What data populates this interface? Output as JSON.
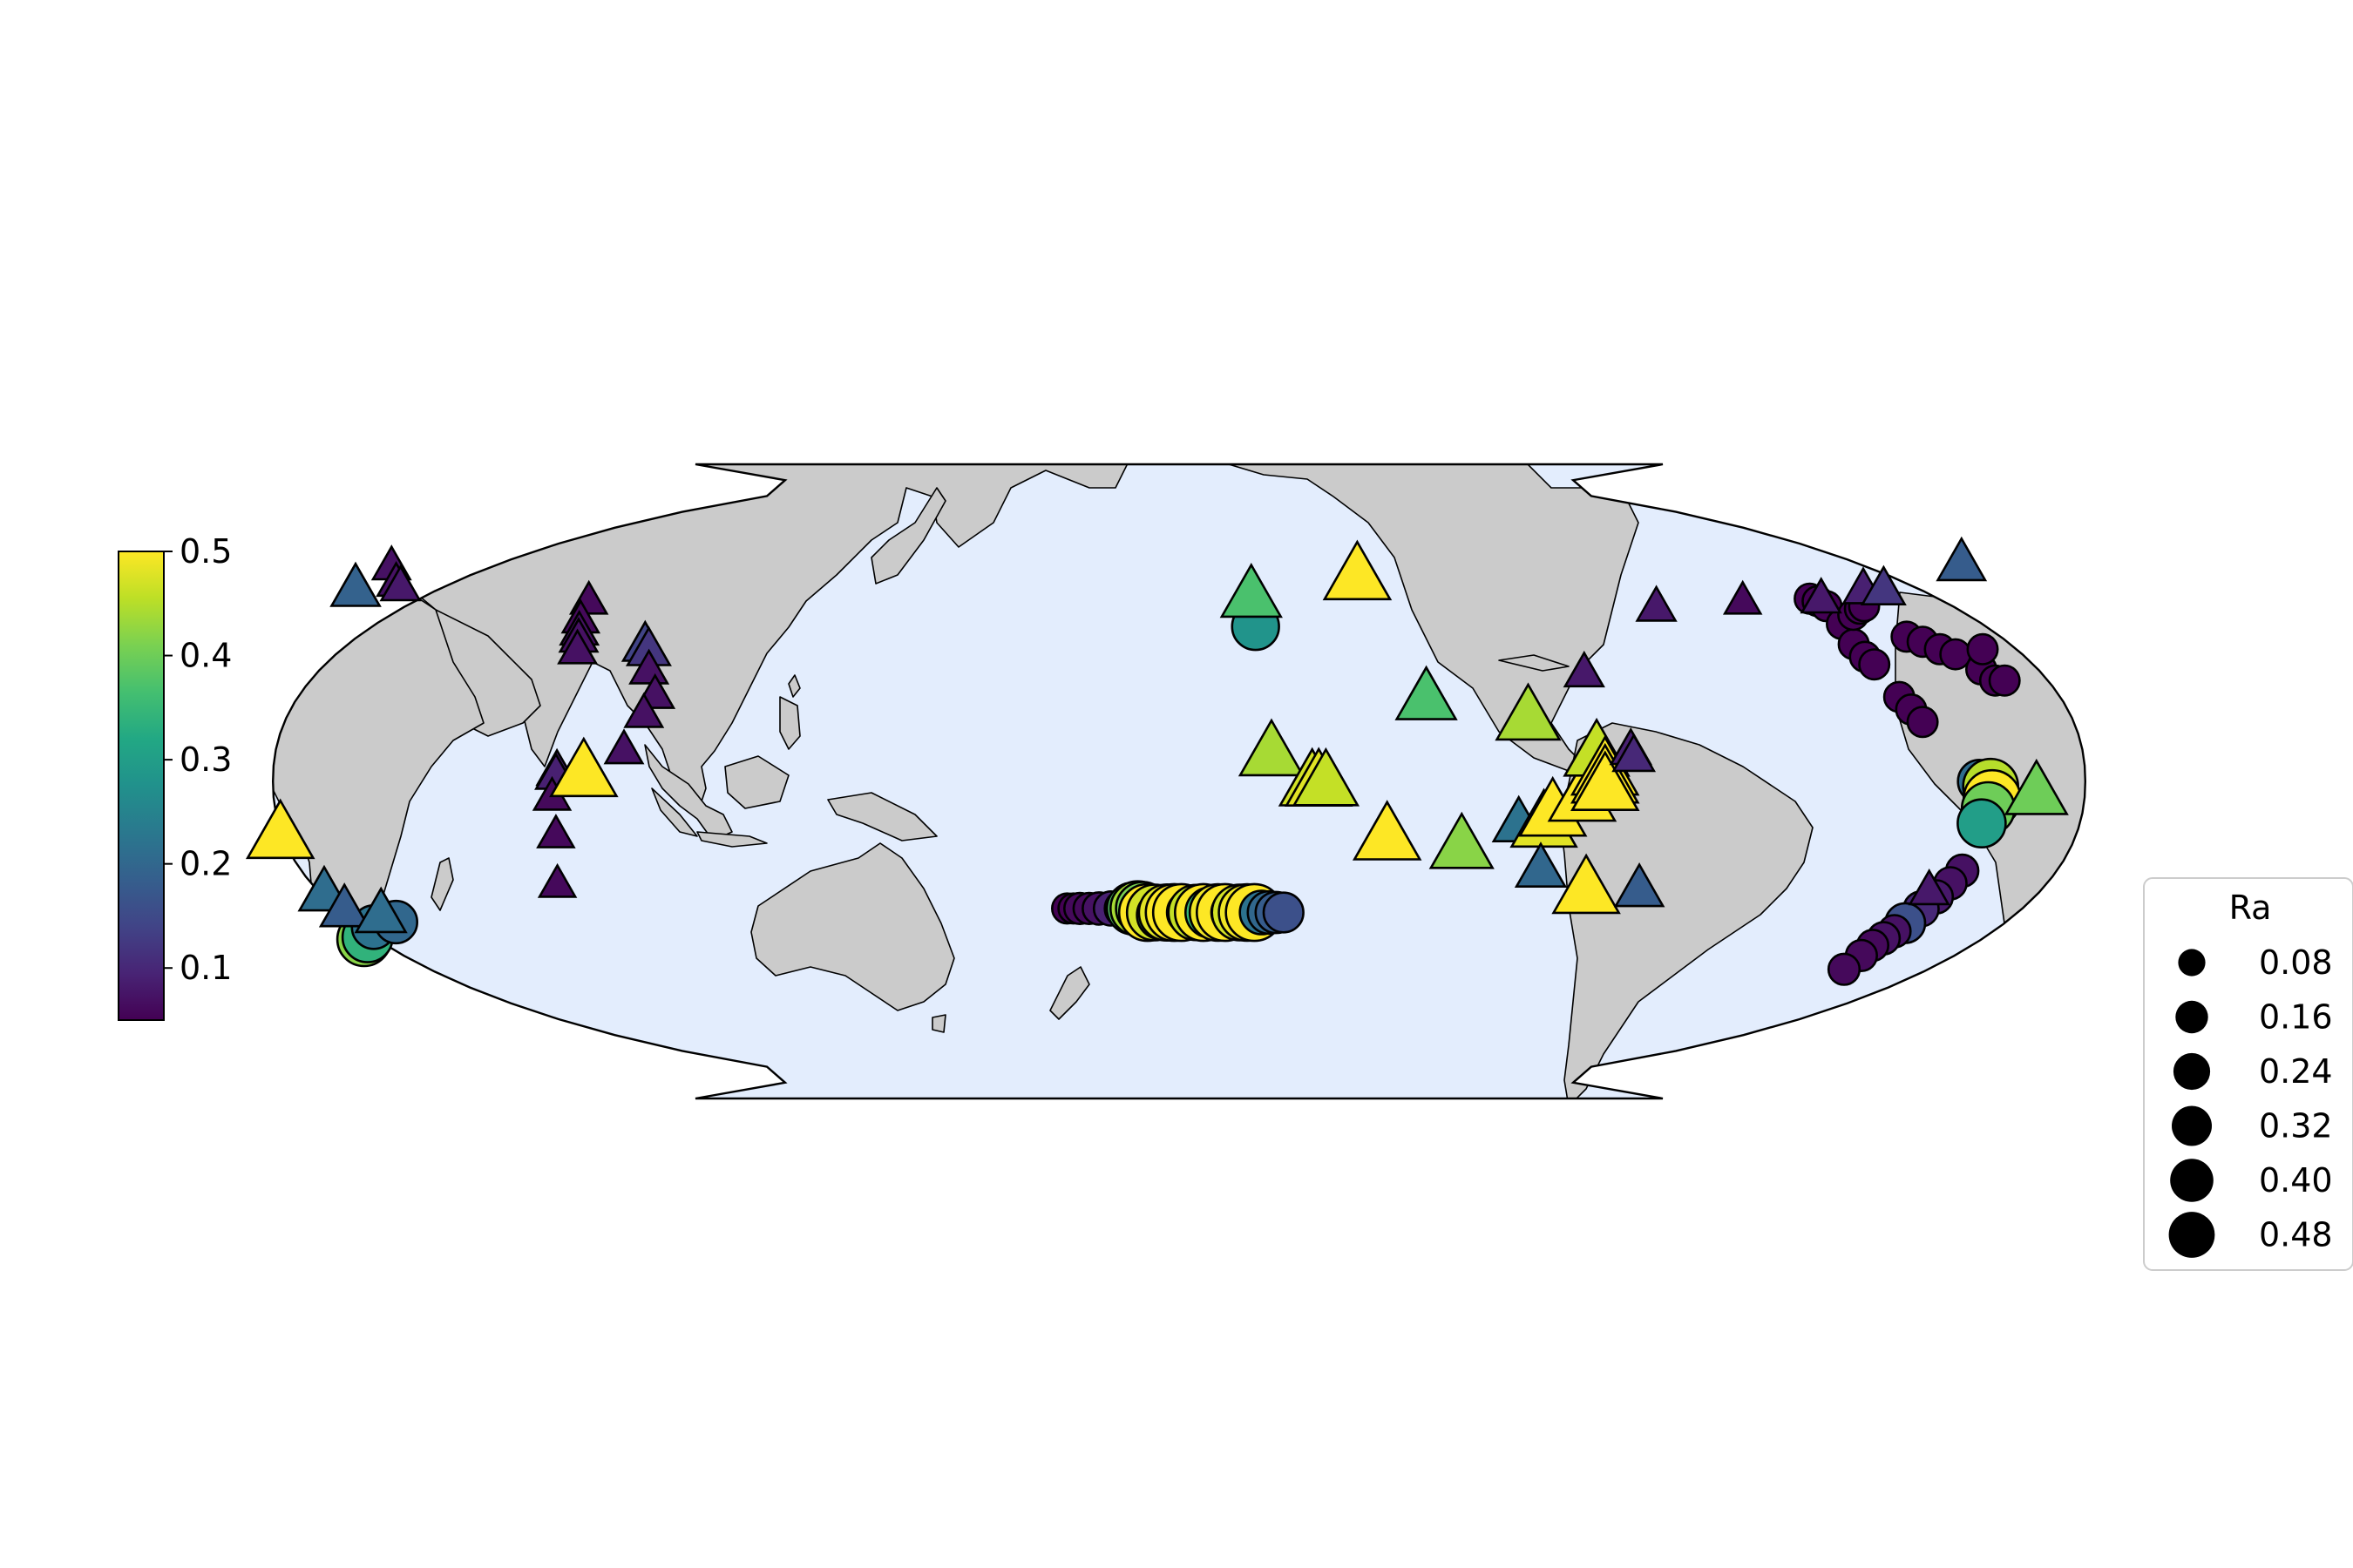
{
  "chart_data": {
    "type": "scatter",
    "title": "",
    "colorbar": {
      "range": [
        0.05,
        0.5
      ],
      "ticks": [
        0.1,
        0.2,
        0.3,
        0.4,
        0.5
      ],
      "tick_labels": [
        "0.1",
        "0.2",
        "0.3",
        "0.4",
        "0.5"
      ],
      "colormap": "viridis"
    },
    "size_legend": {
      "title": "Ra",
      "values": [
        0.08,
        0.16,
        0.24,
        0.32,
        0.4,
        0.48
      ],
      "labels": [
        "0.08",
        "0.16",
        "0.24",
        "0.32",
        "0.40",
        "0.48"
      ]
    },
    "series": [
      {
        "marker": "circle",
        "points": [
          {
            "lon": 166,
            "lat": 31,
            "ra": 0.28
          },
          {
            "lon": 127,
            "lat": -25.5,
            "ra": 0.05
          },
          {
            "lon": 128.3,
            "lat": -25.5,
            "ra": 0.05
          },
          {
            "lon": 129.6,
            "lat": -25.5,
            "ra": 0.06
          },
          {
            "lon": 131.5,
            "lat": -25.5,
            "ra": 0.06
          },
          {
            "lon": 133.5,
            "lat": -25.5,
            "ra": 0.07
          },
          {
            "lon": 136,
            "lat": -25.5,
            "ra": 0.09
          },
          {
            "lon": 138.5,
            "lat": -25.5,
            "ra": 0.12
          },
          {
            "lon": 140.5,
            "lat": -25.5,
            "ra": 0.38
          },
          {
            "lon": 141.5,
            "lat": -25.5,
            "ra": 0.44
          },
          {
            "lon": 142.5,
            "lat": -25.5,
            "ra": 0.41
          },
          {
            "lon": 143.5,
            "lat": -26.3,
            "ra": 0.5
          },
          {
            "lon": 145,
            "lat": -26.3,
            "ra": 0.47
          },
          {
            "lon": 146.3,
            "lat": -26.8,
            "ra": 0.31
          },
          {
            "lon": 147.5,
            "lat": -26.3,
            "ra": 0.48
          },
          {
            "lon": 149,
            "lat": -26.3,
            "ra": 0.5
          },
          {
            "lon": 150.5,
            "lat": -26.3,
            "ra": 0.5
          },
          {
            "lon": 152,
            "lat": -26.3,
            "ra": 0.22
          },
          {
            "lon": 153.5,
            "lat": -26.3,
            "ra": 0.46
          },
          {
            "lon": 155,
            "lat": -26.3,
            "ra": 0.5
          },
          {
            "lon": 156.5,
            "lat": -26.3,
            "ra": 0.35
          },
          {
            "lon": 158,
            "lat": -26.3,
            "ra": 0.49
          },
          {
            "lon": 159.5,
            "lat": -26.3,
            "ra": 0.5
          },
          {
            "lon": 161,
            "lat": -26.3,
            "ra": 0.2
          },
          {
            "lon": 162.5,
            "lat": -26.3,
            "ra": 0.47
          },
          {
            "lon": 164,
            "lat": -26.3,
            "ra": 0.49
          },
          {
            "lon": 165.5,
            "lat": -26.3,
            "ra": 0.5
          },
          {
            "lon": 167,
            "lat": -26.3,
            "ra": 0.22
          },
          {
            "lon": 168.5,
            "lat": -26.3,
            "ra": 0.2
          },
          {
            "lon": 170,
            "lat": -26.3,
            "ra": 0.18
          },
          {
            "lon": 171.5,
            "lat": -26.3,
            "ra": 0.16
          },
          {
            "lon": -75,
            "lat": 36.5,
            "ra": 0.05
          },
          {
            "lon": -73.6,
            "lat": 36.0,
            "ra": 0.05
          },
          {
            "lon": -72.3,
            "lat": 35.0,
            "ra": 0.05
          },
          {
            "lon": -71,
            "lat": 31.5,
            "ra": 0.05
          },
          {
            "lon": -70.5,
            "lat": 27.5,
            "ra": 0.05
          },
          {
            "lon": -69.3,
            "lat": 25.0,
            "ra": 0.05
          },
          {
            "lon": -68,
            "lat": 23.5,
            "ra": 0.05
          },
          {
            "lon": -67.6,
            "lat": 33.3,
            "ra": 0.05
          },
          {
            "lon": -65.5,
            "lat": 34.5,
            "ra": 0.05
          },
          {
            "lon": -64.3,
            "lat": 35.0,
            "ra": 0.05
          },
          {
            "lon": -58.8,
            "lat": 29.0,
            "ra": 0.05
          },
          {
            "lon": -56.0,
            "lat": 28.0,
            "ra": 0.05
          },
          {
            "lon": -53.2,
            "lat": 26.5,
            "ra": 0.05
          },
          {
            "lon": -50.5,
            "lat": 25.5,
            "ra": 0.05
          },
          {
            "lon": -46.6,
            "lat": 22.5,
            "ra": 0.05
          },
          {
            "lon": -44.4,
            "lat": 26.5,
            "ra": 0.05
          },
          {
            "lon": -44.7,
            "lat": 20.3,
            "ra": 0.05
          },
          {
            "lon": -42.8,
            "lat": 20.3,
            "ra": 0.05
          },
          {
            "lon": -65.2,
            "lat": 17.0,
            "ra": 0.05
          },
          {
            "lon": -63.5,
            "lat": 14.5,
            "ra": 0.05
          },
          {
            "lon": -61.8,
            "lat": 12.0,
            "ra": 0.05
          },
          {
            "lon": -51.8,
            "lat": 0.0,
            "ra": 0.21
          },
          {
            "lon": -49.6,
            "lat": -1.0,
            "ra": 0.45
          },
          {
            "lon": -49.2,
            "lat": -3.5,
            "ra": 0.5
          },
          {
            "lon": -49.8,
            "lat": -5.5,
            "ra": 0.4
          },
          {
            "lon": -50.7,
            "lat": -8.5,
            "ra": 0.3
          },
          {
            "lon": -52.2,
            "lat": -18.0,
            "ra": 0.07
          },
          {
            "lon": -53.7,
            "lat": -20.5,
            "ra": 0.07
          },
          {
            "lon": -55.5,
            "lat": -23.2,
            "ra": 0.08
          },
          {
            "lon": -57.5,
            "lat": -25.6,
            "ra": 0.1
          },
          {
            "lon": -59.4,
            "lat": -28.4,
            "ra": 0.16
          },
          {
            "lon": -60.8,
            "lat": -30.0,
            "ra": 0.07
          },
          {
            "lon": -62.3,
            "lat": -31.4,
            "ra": 0.07
          },
          {
            "lon": -63.8,
            "lat": -32.8,
            "ra": 0.06
          },
          {
            "lon": -65.0,
            "lat": -34.8,
            "ra": 0.06
          },
          {
            "lon": -67.0,
            "lat": -37.5,
            "ra": 0.06
          },
          {
            "lon": -21.0,
            "lat": -31.6,
            "ra": 0.42
          },
          {
            "lon": -20.0,
            "lat": -31.2,
            "ra": 0.34
          },
          {
            "lon": -17.5,
            "lat": -29.2,
            "ra": 0.22
          },
          {
            "lon": -12.3,
            "lat": -28.2,
            "ra": 0.2
          }
        ]
      },
      {
        "marker": "triangle",
        "points": [
          {
            "lon": 23.8,
            "lat": 36.2,
            "ra": 0.06
          },
          {
            "lon": 24.0,
            "lat": 32.5,
            "ra": 0.06
          },
          {
            "lon": 24.8,
            "lat": 30.2,
            "ra": 0.07
          },
          {
            "lon": 25.3,
            "lat": 28.8,
            "ra": 0.07
          },
          {
            "lon": 26.0,
            "lat": 26.5,
            "ra": 0.07
          },
          {
            "lon": 39.6,
            "lat": 27.5,
            "ra": 0.14
          },
          {
            "lon": 40.7,
            "lat": 26.5,
            "ra": 0.12
          },
          {
            "lon": 42.0,
            "lat": 22.5,
            "ra": 0.07
          },
          {
            "lon": 44.5,
            "lat": 17.6,
            "ra": 0.07
          },
          {
            "lon": 43.0,
            "lat": 13.8,
            "ra": 0.07
          },
          {
            "lon": 40.0,
            "lat": 6.5,
            "ra": 0.07
          },
          {
            "lon": 27.0,
            "lat": 2.3,
            "ra": 0.09
          },
          {
            "lon": 26.8,
            "lat": 1.5,
            "ra": 0.09
          },
          {
            "lon": 26.0,
            "lat": -3.0,
            "ra": 0.06
          },
          {
            "lon": 26.0,
            "lat": -10.6,
            "ra": 0.06
          },
          {
            "lon": 24.0,
            "lat": -20.5,
            "ra": 0.06
          },
          {
            "lon": 32.3,
            "lat": 2.0,
            "ra": 0.5
          },
          {
            "lon": 165.5,
            "lat": 37.3,
            "ra": 0.37
          },
          {
            "lon": -171.0,
            "lat": 41.2,
            "ra": 0.5
          },
          {
            "lon": -160.3,
            "lat": 17.0,
            "ra": 0.37
          },
          {
            "lon": 168.3,
            "lat": 6.0,
            "ra": 0.44
          },
          {
            "lon": 176.3,
            "lat": 0.0,
            "ra": 0.47
          },
          {
            "lon": 177.6,
            "lat": 0.0,
            "ra": 0.48
          },
          {
            "lon": 179.0,
            "lat": 0.0,
            "ra": 0.46
          },
          {
            "lon": -168.6,
            "lat": -10.8,
            "ra": 0.5
          },
          {
            "lon": -153.6,
            "lat": -12.8,
            "ra": 0.42
          },
          {
            "lon": -142.6,
            "lat": -8.3,
            "ra": 0.22
          },
          {
            "lon": -137.6,
            "lat": -8.3,
            "ra": 0.48
          },
          {
            "lon": -136.0,
            "lat": -6.0,
            "ra": 0.5
          },
          {
            "lon": -130.3,
            "lat": -3.0,
            "ra": 0.5
          },
          {
            "lon": -137.2,
            "lat": -17.5,
            "ra": 0.2
          },
          {
            "lon": -127.3,
            "lat": -21.5,
            "ra": 0.5
          },
          {
            "lon": -116.5,
            "lat": -21.5,
            "ra": 0.18
          },
          {
            "lon": -140.3,
            "lat": 13.2,
            "ra": 0.44
          },
          {
            "lon": -127.3,
            "lat": 6.0,
            "ra": 0.46
          },
          {
            "lon": -125.8,
            "lat": 2.3,
            "ra": 0.5
          },
          {
            "lon": -125.8,
            "lat": 0.7,
            "ra": 0.5
          },
          {
            "lon": -125.8,
            "lat": -0.8,
            "ra": 0.5
          },
          {
            "lon": -127.6,
            "lat": 22.0,
            "ra": 0.08
          },
          {
            "lon": -120.5,
            "lat": 6.5,
            "ra": 0.09
          },
          {
            "lon": -120.0,
            "lat": 5.2,
            "ra": 0.1
          },
          {
            "lon": -108.5,
            "lat": 35.0,
            "ra": 0.08
          },
          {
            "lon": -89.5,
            "lat": 36.2,
            "ra": 0.06
          },
          {
            "lon": -72.5,
            "lat": 36.6,
            "ra": 0.08
          },
          {
            "lon": -62.2,
            "lat": 38.5,
            "ra": 0.09
          },
          {
            "lon": -57.8,
            "lat": 38.5,
            "ra": 0.12
          },
          {
            "lon": -36.6,
            "lat": 43.6,
            "ra": 0.18
          },
          {
            "lon": -28.0,
            "lat": 38.6,
            "ra": 0.19
          },
          {
            "lon": -57.5,
            "lat": -21.8,
            "ra": 0.08
          },
          {
            "lon": -40.5,
            "lat": -2.0,
            "ra": 0.4
          },
          {
            "lon": -28.8,
            "lat": -10.5,
            "ra": 0.5
          },
          {
            "lon": -24.0,
            "lat": -22.2,
            "ra": 0.21
          },
          {
            "lon": -21.5,
            "lat": -25.5,
            "ra": 0.18
          },
          {
            "lon": -14.5,
            "lat": -26.5,
            "ra": 0.21
          },
          {
            "lon": -24.0,
            "lat": 43.0,
            "ra": 0.07
          },
          {
            "lon": -20.2,
            "lat": 39.8,
            "ra": 0.07
          },
          {
            "lon": -18.6,
            "lat": 39.0,
            "ra": 0.08
          }
        ]
      }
    ]
  }
}
